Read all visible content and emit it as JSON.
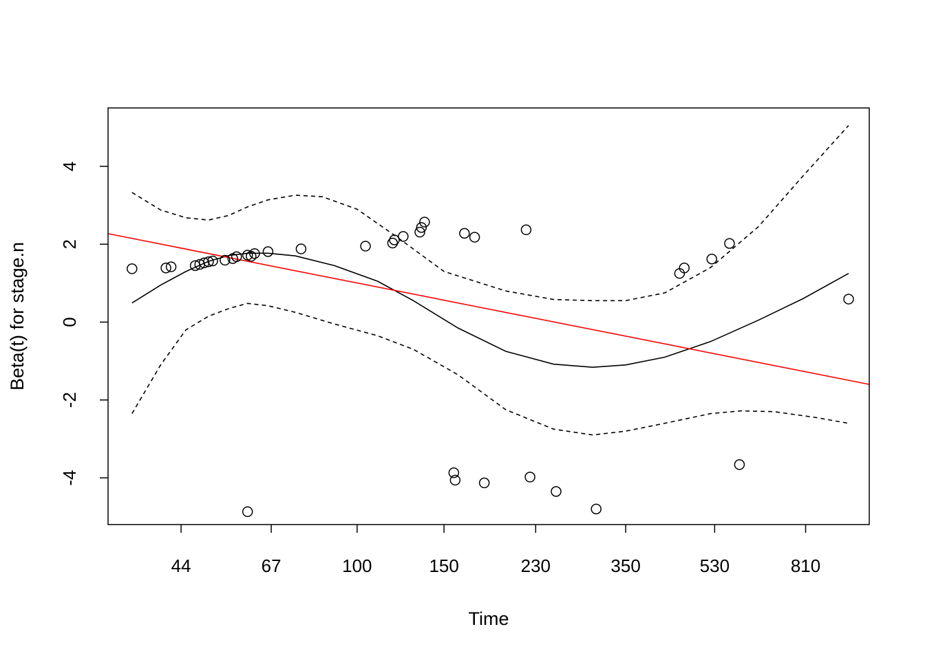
{
  "chart_data": {
    "type": "scatter",
    "title": "",
    "xlabel": "Time",
    "ylabel": "Beta(t) for stage.n",
    "x_scale": "log",
    "xlim": [
      31.3,
      1090
    ],
    "ylim": [
      -5.2,
      5.5
    ],
    "x_ticks": [
      44,
      67,
      100,
      150,
      230,
      350,
      530,
      810
    ],
    "x_tick_labels": [
      "44",
      "67",
      "100",
      "150",
      "230",
      "350",
      "530",
      "810"
    ],
    "y_ticks": [
      -4,
      -2,
      0,
      2,
      4
    ],
    "y_tick_labels": [
      "-4",
      "-2",
      "0",
      "2",
      "4"
    ],
    "grid": false,
    "colors": {
      "points": "#000000",
      "smooth": "#000000",
      "bands": "#000000",
      "fit_line": "#ff0000"
    },
    "points": [
      {
        "x": 35,
        "y": 1.37
      },
      {
        "x": 41,
        "y": 1.39
      },
      {
        "x": 42,
        "y": 1.42
      },
      {
        "x": 47,
        "y": 1.45
      },
      {
        "x": 48,
        "y": 1.48
      },
      {
        "x": 49,
        "y": 1.52
      },
      {
        "x": 50,
        "y": 1.55
      },
      {
        "x": 51,
        "y": 1.57
      },
      {
        "x": 54,
        "y": 1.59
      },
      {
        "x": 56,
        "y": 1.63
      },
      {
        "x": 57,
        "y": 1.68
      },
      {
        "x": 60,
        "y": 1.72
      },
      {
        "x": 61,
        "y": 1.69
      },
      {
        "x": 62,
        "y": 1.76
      },
      {
        "x": 60,
        "y": -4.87
      },
      {
        "x": 66,
        "y": 1.81
      },
      {
        "x": 77,
        "y": 1.88
      },
      {
        "x": 104,
        "y": 1.95
      },
      {
        "x": 118,
        "y": 2.03
      },
      {
        "x": 119,
        "y": 2.11
      },
      {
        "x": 124,
        "y": 2.2
      },
      {
        "x": 134,
        "y": 2.31
      },
      {
        "x": 135,
        "y": 2.43
      },
      {
        "x": 137,
        "y": 2.57
      },
      {
        "x": 165,
        "y": 2.28
      },
      {
        "x": 173,
        "y": 2.18
      },
      {
        "x": 220,
        "y": 2.37
      },
      {
        "x": 157,
        "y": -3.87
      },
      {
        "x": 158,
        "y": -4.06
      },
      {
        "x": 181,
        "y": -4.13
      },
      {
        "x": 224,
        "y": -3.98
      },
      {
        "x": 253,
        "y": -4.35
      },
      {
        "x": 305,
        "y": -4.8
      },
      {
        "x": 450,
        "y": 1.25
      },
      {
        "x": 460,
        "y": 1.39
      },
      {
        "x": 523,
        "y": 1.62
      },
      {
        "x": 568,
        "y": 2.02
      },
      {
        "x": 595,
        "y": -3.66
      },
      {
        "x": 990,
        "y": 0.59
      }
    ],
    "series": [
      {
        "style": "solid",
        "color": "#000000",
        "x": [
          35,
          40,
          45,
          50,
          55,
          60,
          66,
          75,
          90,
          110,
          130,
          160,
          200,
          250,
          300,
          350,
          420,
          520,
          650,
          800,
          990
        ],
        "y": [
          0.49,
          0.95,
          1.3,
          1.56,
          1.71,
          1.77,
          1.77,
          1.7,
          1.45,
          1.05,
          0.55,
          -0.15,
          -0.75,
          -1.08,
          -1.16,
          -1.1,
          -0.9,
          -0.5,
          0.05,
          0.6,
          1.25
        ]
      },
      {
        "style": "dashed",
        "color": "#000000",
        "x": [
          35,
          40,
          45,
          50,
          55,
          60,
          66,
          75,
          85,
          100,
          120,
          150,
          200,
          250,
          300,
          350,
          420,
          520,
          650,
          800,
          990
        ],
        "y": [
          3.33,
          2.88,
          2.68,
          2.62,
          2.74,
          2.96,
          3.14,
          3.26,
          3.22,
          2.9,
          2.2,
          1.3,
          0.8,
          0.58,
          0.55,
          0.55,
          0.75,
          1.4,
          2.45,
          3.75,
          5.05
        ]
      },
      {
        "style": "dashed",
        "color": "#000000",
        "x": [
          35,
          40,
          45,
          50,
          55,
          60,
          66,
          75,
          90,
          110,
          130,
          160,
          200,
          250,
          300,
          350,
          420,
          520,
          600,
          700,
          850,
          990
        ],
        "y": [
          -2.35,
          -1.1,
          -0.2,
          0.15,
          0.35,
          0.48,
          0.42,
          0.25,
          -0.05,
          -0.35,
          -0.7,
          -1.35,
          -2.25,
          -2.75,
          -2.9,
          -2.8,
          -2.6,
          -2.35,
          -2.28,
          -2.3,
          -2.45,
          -2.6
        ]
      },
      {
        "style": "solid",
        "color": "#ff0000",
        "x": [
          31.3,
          1090
        ],
        "y": [
          2.27,
          -1.6
        ]
      }
    ]
  }
}
